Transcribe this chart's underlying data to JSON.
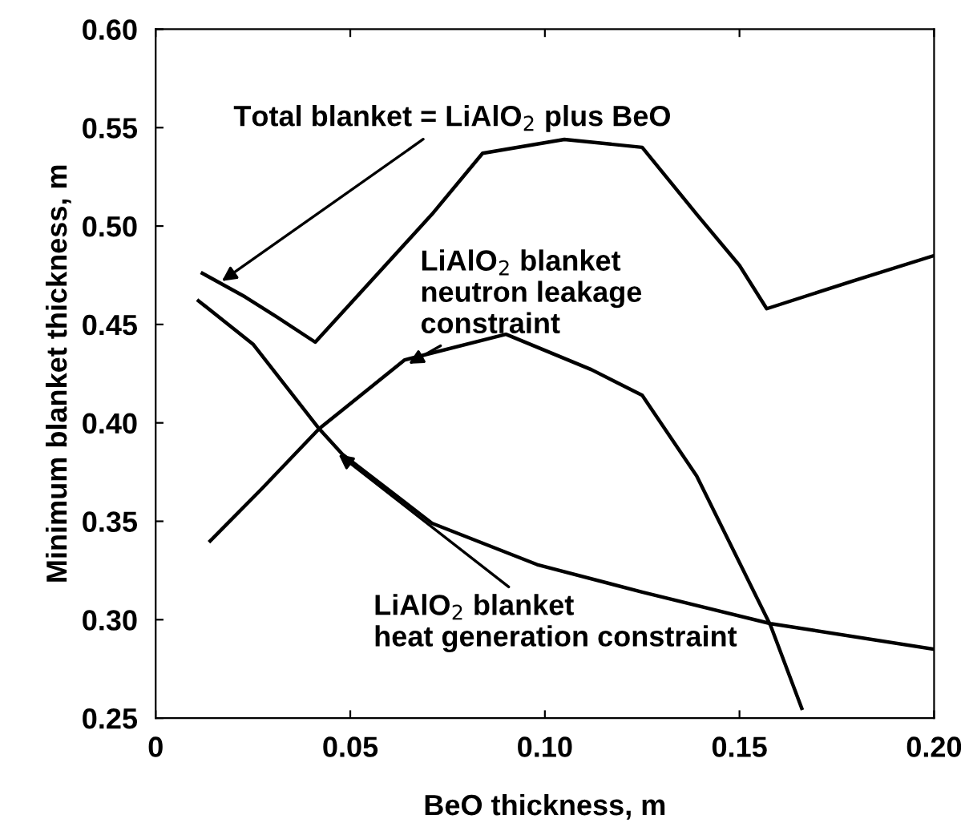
{
  "chart_data": {
    "type": "line",
    "xlabel": "BeO thickness, m",
    "ylabel": "Minimum blanket thickness, m",
    "xlim": [
      0,
      0.2
    ],
    "ylim": [
      0.25,
      0.6
    ],
    "xticks": [
      0,
      0.05,
      {
        "value": 0.1,
        "label": "0.10"
      },
      0.15,
      {
        "value": 0.2,
        "label": "0.20"
      }
    ],
    "yticks": [
      0.25,
      {
        "value": 0.3,
        "label": "0.30"
      },
      0.35,
      {
        "value": 0.4,
        "label": "0.40"
      },
      0.45,
      {
        "value": 0.5,
        "label": "0.50"
      },
      0.55,
      {
        "value": 0.6,
        "label": "0.60"
      }
    ],
    "grid": false,
    "legend": false,
    "marker": "none",
    "line_style": "solid",
    "series": [
      {
        "color": "#000000",
        "x": [
          0.012,
          0.023,
          0.031,
          0.041,
          0.071,
          0.084,
          0.105,
          0.125,
          0.139,
          0.15,
          0.157,
          0.179,
          0.2
        ],
        "values": [
          0.476,
          0.464,
          0.454,
          0.441,
          0.506,
          0.537,
          0.544,
          0.54,
          0.506,
          0.48,
          0.458,
          0.472,
          0.485
        ]
      },
      {
        "color": "#000000",
        "x": [
          0.014,
          0.027,
          0.042,
          0.064,
          0.09,
          0.112,
          0.125,
          0.139,
          0.158,
          0.166
        ],
        "values": [
          0.34,
          0.366,
          0.397,
          0.432,
          0.445,
          0.427,
          0.414,
          0.373,
          0.297,
          0.255
        ]
      },
      {
        "color": "#000000",
        "x": [
          0.011,
          0.025,
          0.042,
          0.048,
          0.071,
          0.098,
          0.125,
          0.158,
          0.2
        ],
        "values": [
          0.462,
          0.44,
          0.397,
          0.384,
          0.349,
          0.328,
          0.314,
          0.298,
          0.285
        ]
      }
    ],
    "annotations": [
      {
        "text": "Total blanket = LiAlO$_{2}$ plus BeO",
        "x": 0.017,
        "y": 0.472
      },
      {
        "text": "LiAlO$_{2}$ blanket\nneutron leakage\nconstraint",
        "x": 0.065,
        "y": 0.43
      },
      {
        "text": "LiAlO$_{2}$ blanket\nheat generation constraint",
        "x": 0.047,
        "y": 0.384
      }
    ]
  }
}
